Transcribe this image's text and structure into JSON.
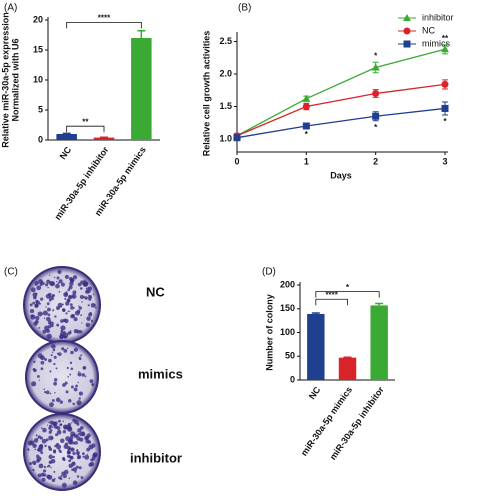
{
  "chart_data": [
    {
      "type": "bar",
      "panel": "(A)",
      "ylabel": [
        "Relative miR-30a-5p expression",
        "Normalized with U6"
      ],
      "categories": [
        "NC",
        "miR-30a-5p inhibitor",
        "miR-30a-5p mimics"
      ],
      "values": [
        1.0,
        0.4,
        17.0
      ],
      "errors": [
        0.1,
        0.05,
        1.2
      ],
      "colors": [
        "#1f3f8f",
        "#d8232a",
        "#3aaa35"
      ],
      "ylim": [
        0,
        20
      ],
      "yticks": [
        0,
        5,
        10,
        15,
        20
      ],
      "annotations": [
        "**",
        "****"
      ]
    },
    {
      "type": "line",
      "panel": "(B)",
      "ylabel": "Relative cell growth activities",
      "xlabel": "Days",
      "x": [
        0,
        1,
        2,
        3
      ],
      "xlim": [
        0,
        3
      ],
      "xticks": [
        0,
        1,
        2,
        3
      ],
      "ylim": [
        0.8,
        2.6
      ],
      "yticks": [
        {
          "value": 1.0,
          "label": "1.0"
        },
        {
          "value": 1.5,
          "label": "1.5"
        },
        {
          "value": 2.0,
          "label": "2.0"
        },
        {
          "value": 2.5,
          "label": "2.5"
        }
      ],
      "legend": "top-right",
      "series": [
        {
          "name": "inhibitor",
          "color": "#3aaa35",
          "marker": "triangle",
          "values": [
            1.05,
            1.62,
            2.1,
            2.38
          ],
          "errors": [
            0.03,
            0.04,
            0.08,
            0.07
          ]
        },
        {
          "name": "NC",
          "color": "#d8232a",
          "marker": "circle",
          "values": [
            1.05,
            1.5,
            1.7,
            1.84
          ],
          "errors": [
            0.03,
            0.05,
            0.06,
            0.07
          ]
        },
        {
          "name": "mimics",
          "color": "#1f3f8f",
          "marker": "square",
          "values": [
            1.02,
            1.2,
            1.35,
            1.47
          ],
          "errors": [
            0.03,
            0.03,
            0.07,
            0.1
          ]
        }
      ],
      "annotations": [
        "*",
        "*",
        "*",
        "**",
        "*"
      ]
    },
    {
      "type": "bar",
      "panel": "(D)",
      "ylabel": "Number of colony",
      "categories": [
        "NC",
        "miR-30a-5p mimics",
        "miR-30a-5p inhibitor"
      ],
      "values": [
        139,
        47,
        157
      ],
      "errors": [
        2,
        1,
        4
      ],
      "colors": [
        "#1f3f8f",
        "#d8232a",
        "#3aaa35"
      ],
      "ylim": [
        0,
        200
      ],
      "yticks": [
        0,
        50,
        100,
        150,
        200
      ],
      "annotations": [
        "****",
        "*"
      ]
    }
  ],
  "colony_panel": {
    "panel": "(C)",
    "plates": [
      "NC",
      "mimics",
      "inhibitor"
    ]
  }
}
